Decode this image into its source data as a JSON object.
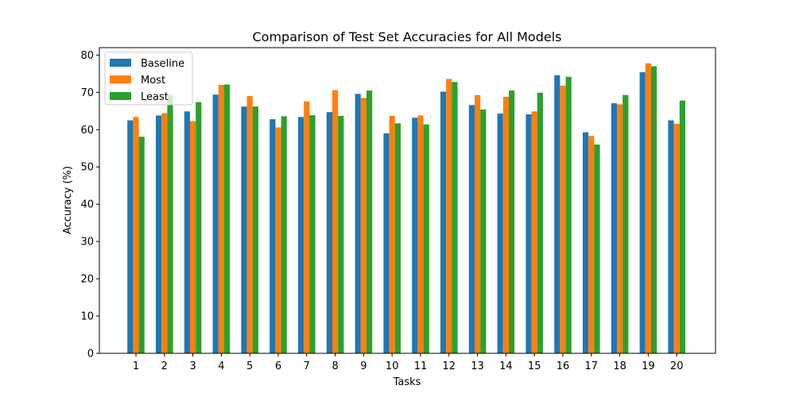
{
  "chart_data": {
    "type": "bar",
    "title": "Comparison of Test Set Accuracies for All Models",
    "xlabel": "Tasks",
    "ylabel": "Accuracy (%)",
    "ylim": [
      0,
      82
    ],
    "yticks": [
      0,
      10,
      20,
      30,
      40,
      50,
      60,
      70,
      80
    ],
    "grid": false,
    "legend_position": "top-left",
    "categories": [
      "1",
      "2",
      "3",
      "4",
      "5",
      "6",
      "7",
      "8",
      "9",
      "10",
      "11",
      "12",
      "13",
      "14",
      "15",
      "16",
      "17",
      "18",
      "19",
      "20"
    ],
    "series": [
      {
        "name": "Baseline",
        "color": "#1f77b4",
        "values": [
          62.5,
          63.8,
          64.9,
          69.4,
          66.2,
          62.8,
          63.4,
          64.7,
          69.6,
          59.0,
          63.2,
          70.2,
          66.6,
          64.3,
          64.1,
          74.6,
          59.3,
          67.1,
          75.4,
          62.5
        ]
      },
      {
        "name": "Most",
        "color": "#ff7f0e",
        "values": [
          63.4,
          64.4,
          62.3,
          72.0,
          69.0,
          60.6,
          67.6,
          70.6,
          68.5,
          63.7,
          63.8,
          73.6,
          69.3,
          68.8,
          64.9,
          71.8,
          58.3,
          66.8,
          77.8,
          61.6
        ]
      },
      {
        "name": "Least",
        "color": "#2ca02c",
        "values": [
          58.1,
          69.3,
          67.4,
          72.1,
          66.2,
          63.6,
          63.9,
          63.7,
          70.5,
          61.7,
          61.4,
          72.8,
          65.4,
          70.5,
          69.9,
          74.2,
          56.0,
          69.3,
          77.0,
          67.8
        ]
      }
    ]
  }
}
